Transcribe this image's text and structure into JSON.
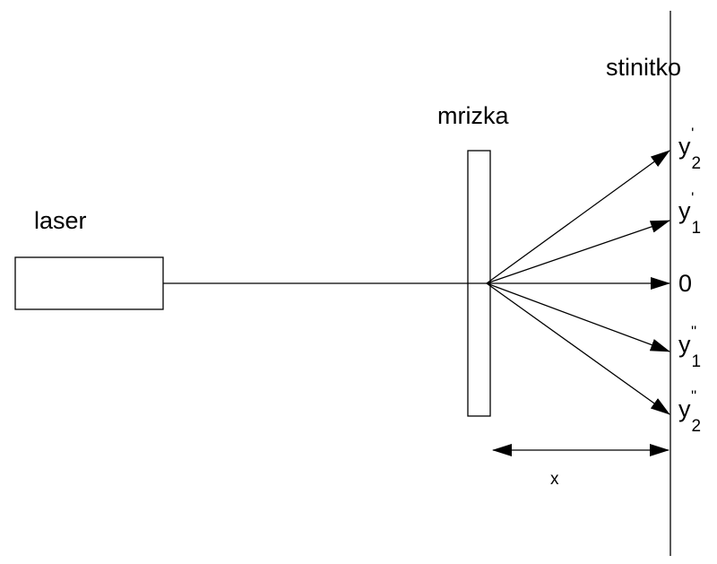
{
  "labels": {
    "laser": "laser",
    "grating": "mrizka",
    "screen": "stinitko",
    "distance": "x"
  },
  "orders": [
    {
      "id": "y2-prime",
      "base": "y",
      "prime": "'",
      "sub": "2"
    },
    {
      "id": "y1-prime",
      "base": "y",
      "prime": "'",
      "sub": "1"
    },
    {
      "id": "zero",
      "base": "0",
      "prime": "",
      "sub": ""
    },
    {
      "id": "y1-dprime",
      "base": "y",
      "prime": "\"",
      "sub": "1"
    },
    {
      "id": "y2-dprime",
      "base": "y",
      "prime": "\"",
      "sub": "2"
    }
  ],
  "colors": {
    "stroke": "#000000",
    "background": "#ffffff"
  }
}
